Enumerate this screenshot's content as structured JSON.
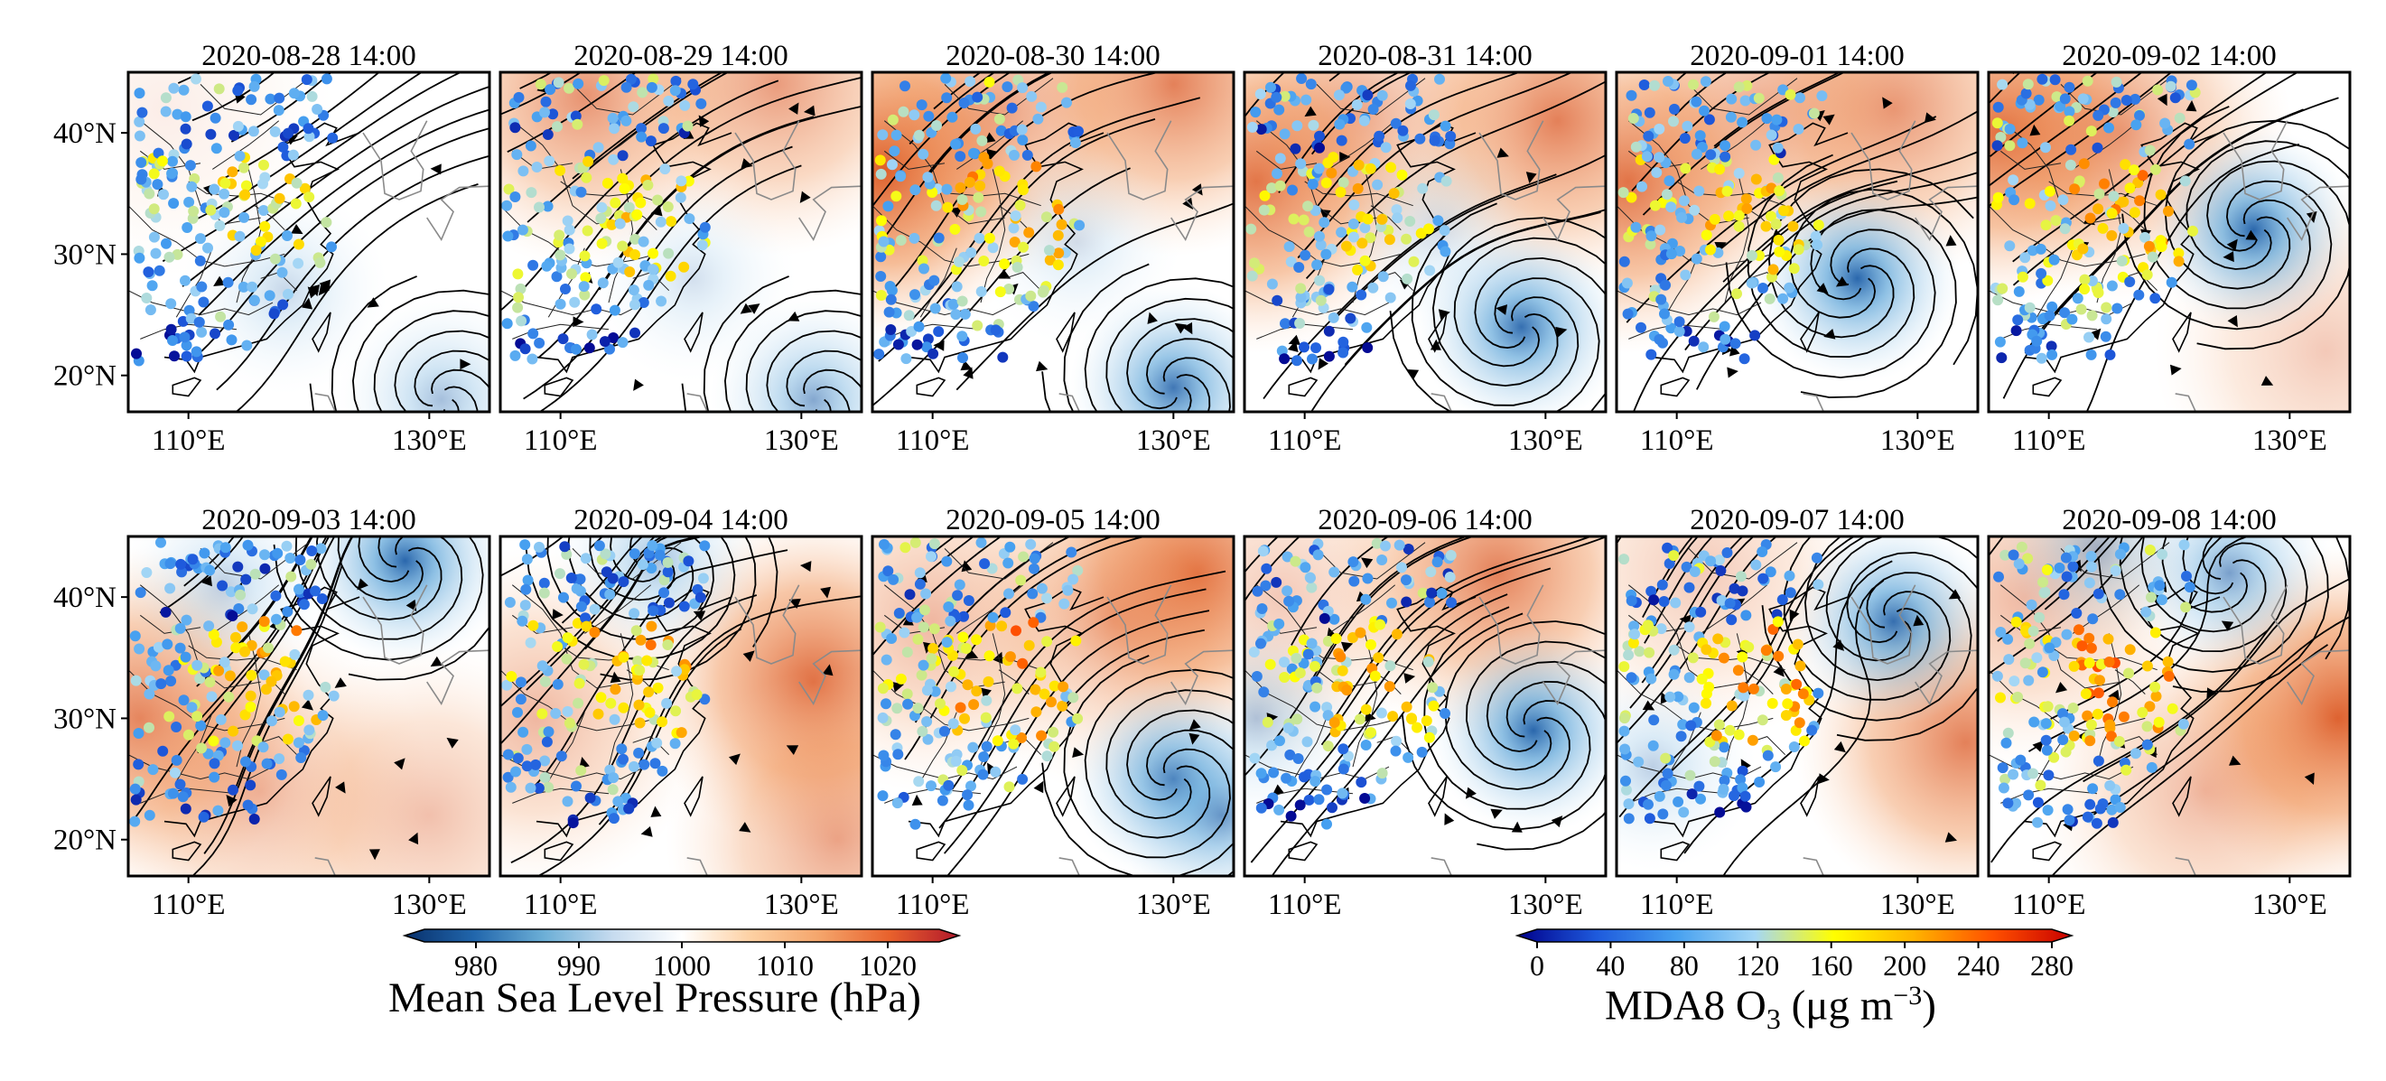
{
  "figure": {
    "panels": [
      {
        "date": "2020-08-28",
        "time": "14:00",
        "highs": [
          [
            108,
            42,
            0.1
          ]
        ],
        "lows": [
          [
            131,
            18,
            0.4
          ],
          [
            118,
            27,
            0.25
          ]
        ],
        "cyclone": [
          131,
          18,
          2
        ]
      },
      {
        "date": "2020-08-29",
        "time": "14:00",
        "highs": [
          [
            112,
            43,
            0.6
          ],
          [
            128,
            44,
            0.55
          ]
        ],
        "lows": [
          [
            131,
            18,
            0.55
          ],
          [
            121,
            28,
            0.2
          ]
        ],
        "cyclone": [
          131,
          18,
          3
        ]
      },
      {
        "date": "2020-08-30",
        "time": "14:00",
        "highs": [
          [
            106,
            37,
            0.95
          ],
          [
            130,
            44,
            0.7
          ],
          [
            116,
            42,
            0.45
          ]
        ],
        "lows": [
          [
            130,
            19,
            0.85
          ],
          [
            122,
            31,
            0.2
          ]
        ],
        "cyclone": [
          130,
          19,
          5
        ]
      },
      {
        "date": "2020-08-31",
        "time": "14:00",
        "highs": [
          [
            106,
            36,
            0.8
          ],
          [
            131,
            41,
            0.7
          ],
          [
            115,
            42,
            0.4
          ]
        ],
        "lows": [
          [
            128,
            24,
            0.9
          ],
          [
            121,
            32,
            0.2
          ]
        ],
        "cyclone": [
          128,
          24,
          6
        ]
      },
      {
        "date": "2020-09-01",
        "time": "14:00",
        "highs": [
          [
            106,
            36,
            0.8
          ],
          [
            128,
            42,
            0.6
          ],
          [
            117,
            42,
            0.4
          ]
        ],
        "lows": [
          [
            125,
            28,
            0.95
          ]
        ],
        "cyclone": [
          125,
          28,
          6
        ]
      },
      {
        "date": "2020-09-02",
        "time": "14:00",
        "highs": [
          [
            106,
            40,
            0.85
          ],
          [
            116,
            40,
            0.5
          ],
          [
            133,
            22,
            0.3
          ]
        ],
        "lows": [
          [
            127,
            32,
            0.95
          ]
        ],
        "cyclone": [
          127,
          32,
          6
        ]
      },
      {
        "date": "2020-09-03",
        "time": "14:00",
        "highs": [
          [
            106,
            30,
            0.7
          ],
          [
            116,
            24,
            0.4
          ],
          [
            130,
            22,
            0.35
          ]
        ],
        "lows": [
          [
            128,
            43,
            0.95
          ],
          [
            113,
            41,
            0.3
          ]
        ],
        "cyclone": [
          128,
          43,
          6
        ]
      },
      {
        "date": "2020-09-04",
        "time": "14:00",
        "highs": [
          [
            131,
            33,
            0.8
          ],
          [
            108,
            30,
            0.4
          ],
          [
            133,
            20,
            0.5
          ]
        ],
        "lows": [
          [
            118,
            43,
            0.4
          ]
        ],
        "cyclone": [
          118,
          43,
          2
        ]
      },
      {
        "date": "2020-09-05",
        "time": "14:00",
        "highs": [
          [
            132,
            42,
            0.8
          ],
          [
            110,
            38,
            0.4
          ],
          [
            125,
            38,
            0.4
          ]
        ],
        "lows": [
          [
            130,
            25,
            0.9
          ],
          [
            134,
            22,
            0.6
          ]
        ],
        "cyclone": [
          130,
          25,
          6
        ]
      },
      {
        "date": "2020-09-06",
        "time": "14:00",
        "highs": [
          [
            126,
            42,
            0.7
          ],
          [
            108,
            40,
            0.3
          ]
        ],
        "lows": [
          [
            129,
            29,
            0.95
          ],
          [
            106,
            30,
            0.35
          ]
        ],
        "cyclone": [
          129,
          29,
          6
        ]
      },
      {
        "date": "2020-09-07",
        "time": "14:00",
        "highs": [
          [
            134,
            28,
            0.7
          ],
          [
            112,
            42,
            0.3
          ]
        ],
        "lows": [
          [
            128,
            38,
            0.9
          ],
          [
            108,
            26,
            0.3
          ]
        ],
        "cyclone": [
          128,
          38,
          6
        ]
      },
      {
        "date": "2020-09-08",
        "time": "14:00",
        "highs": [
          [
            134,
            30,
            0.9
          ],
          [
            108,
            40,
            0.4
          ],
          [
            123,
            24,
            0.4
          ]
        ],
        "lows": [
          [
            125,
            42,
            0.6
          ],
          [
            114,
            44,
            0.4
          ]
        ],
        "cyclone": [
          125,
          42,
          3
        ]
      }
    ],
    "axes": {
      "lat_ticks": [
        {
          "value": 40,
          "label": "40°N"
        },
        {
          "value": 30,
          "label": "30°N"
        },
        {
          "value": 20,
          "label": "20°N"
        }
      ],
      "lon_ticks": [
        {
          "value": 110,
          "label": "110°E"
        },
        {
          "value": 130,
          "label": "130°E"
        }
      ],
      "lon_range": [
        105,
        135
      ],
      "lat_range": [
        17,
        45
      ]
    },
    "colorbar_pressure": {
      "title": "Mean Sea Level Pressure (hPa)",
      "ticks": [
        "980",
        "990",
        "1000",
        "1010",
        "1020"
      ],
      "range": [
        975,
        1025
      ],
      "extend": "both",
      "colors": [
        "#08306b",
        "#2166ac",
        "#6baed6",
        "#c6dbef",
        "#ffffff",
        "#fdd0a2",
        "#f4a46a",
        "#e8612c",
        "#b2182b"
      ]
    },
    "colorbar_ozone": {
      "title_main": "MDA8 O",
      "title_sub": "3",
      "title_unit": " (μg m",
      "title_sup": "−3",
      "title_close": ")",
      "ticks": [
        "0",
        "40",
        "80",
        "120",
        "160",
        "200",
        "240",
        "280"
      ],
      "range": [
        0,
        280
      ],
      "extend": "both",
      "colors": [
        "#00008b",
        "#1e5adc",
        "#46a0f0",
        "#a5d7f5",
        "#ffff00",
        "#ffb400",
        "#ff5000",
        "#c80000"
      ]
    }
  }
}
